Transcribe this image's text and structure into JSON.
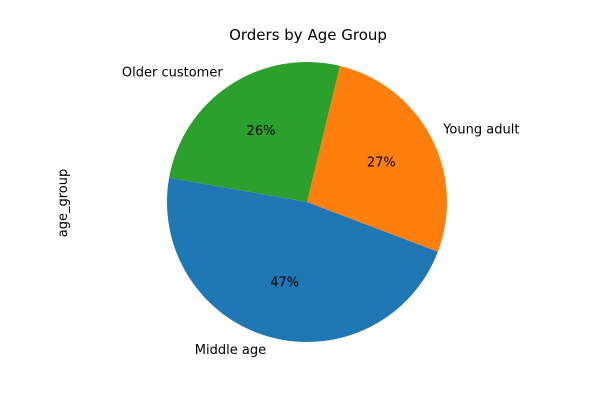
{
  "chart_data": {
    "type": "pie",
    "title": "Orders by Age Group",
    "ylabel": "age_group",
    "categories": [
      "Middle age",
      "Young adult",
      "Older customer"
    ],
    "values": [
      47,
      27,
      26
    ],
    "percent_labels": [
      "47%",
      "27%",
      "26%"
    ],
    "colors": [
      "#1f77b4",
      "#ff7f0e",
      "#2ca02c"
    ]
  }
}
